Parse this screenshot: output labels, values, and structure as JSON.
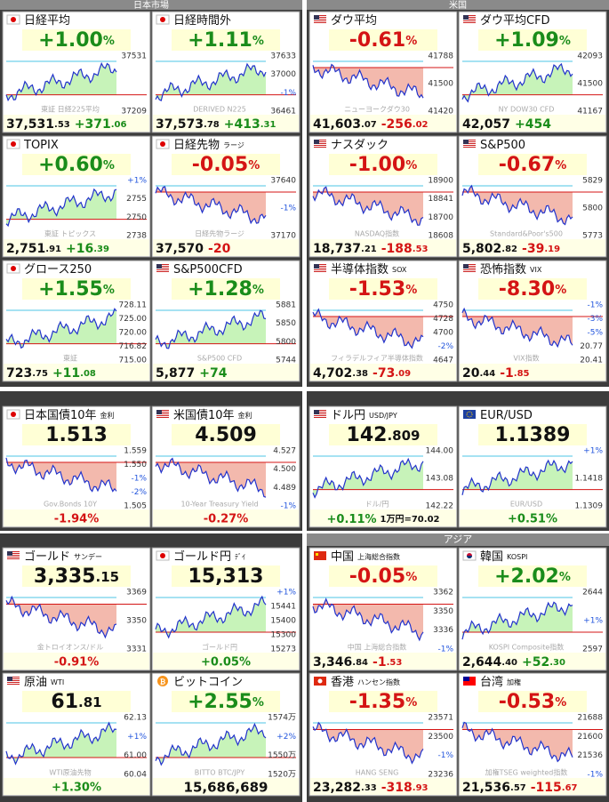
{
  "sections": [
    {
      "title": "日本市場"
    },
    {
      "title": "米国"
    },
    {
      "title": "アジア"
    }
  ],
  "panels": [
    {
      "name": "日経平均",
      "headline": [
        "+1.00",
        "%"
      ],
      "axis": [
        "37531",
        "37209"
      ],
      "watermark": "東証 日経225平均",
      "footer": [
        "37,531",
        ".53",
        "+371",
        ".06"
      ]
    },
    {
      "name": "日経時間外",
      "headline": [
        "+1.11",
        "%"
      ],
      "axis": [
        "37633",
        "37000",
        "-1%",
        "36461"
      ],
      "watermark": "DERIVED N225",
      "footer": [
        "37,573",
        ".78",
        "+413",
        ".31"
      ]
    },
    {
      "name": "TOPIX",
      "headline": [
        "+0.60",
        "%"
      ],
      "axis": [
        "+1%",
        "2755",
        "2750",
        "2738"
      ],
      "watermark": "東証 トピックス",
      "footer": [
        "2,751",
        ".91",
        "+16",
        ".39"
      ]
    },
    {
      "name": "日経先物",
      "sub": "ラージ",
      "headline": [
        "-0.05",
        "%"
      ],
      "axis": [
        "37640",
        "-1%",
        "37170"
      ],
      "watermark": "日経先物ラージ",
      "footer": [
        "37,570",
        "",
        "-20",
        ""
      ]
    },
    {
      "name": "グロース250",
      "headline": [
        "+1.55",
        "%"
      ],
      "axis": [
        "728.11",
        "725.00",
        "720.00",
        "716.82",
        "715.00"
      ],
      "watermark": "東証",
      "footer": [
        "723",
        ".75",
        "+11",
        ".08"
      ]
    },
    {
      "name": "S&P500CFD",
      "headline": [
        "+1.28",
        "%"
      ],
      "axis": [
        "5881",
        "5850",
        "5800",
        "5744"
      ],
      "watermark": "S&P500 CFD",
      "footer": [
        "5,877",
        "",
        "+74",
        ""
      ]
    },
    {
      "name": "ダウ平均",
      "headline": [
        "-0.61",
        "%"
      ],
      "axis": [
        "41788",
        "41500",
        "41420"
      ],
      "watermark": "ニューヨークダウ30",
      "footer": [
        "41,603",
        ".07",
        "-256",
        ".02"
      ]
    },
    {
      "name": "ダウ平均CFD",
      "headline": [
        "+1.09",
        "%"
      ],
      "axis": [
        "42093",
        "41500",
        "41167"
      ],
      "watermark": "NY DOW30 CFD",
      "footer": [
        "42,057",
        "",
        "+454",
        ""
      ]
    },
    {
      "name": "ナスダック",
      "headline": [
        "-1.00",
        "%"
      ],
      "axis": [
        "18900",
        "18841",
        "18700",
        "18608"
      ],
      "watermark": "NASDAQ指数",
      "footer": [
        "18,737",
        ".21",
        "-188",
        ".53"
      ]
    },
    {
      "name": "S&P500",
      "headline": [
        "-0.67",
        "%"
      ],
      "axis": [
        "5829",
        "5800",
        "5773"
      ],
      "watermark": "Standard&Poor's500",
      "footer": [
        "5,802",
        ".82",
        "-39",
        ".19"
      ]
    },
    {
      "name": "半導体指数",
      "sub": "SOX",
      "headline": [
        "-1.53",
        "%"
      ],
      "axis": [
        "4750",
        "4728",
        "4700",
        "-2%",
        "4647"
      ],
      "watermark": "フィラデルフィア半導体指数",
      "footer": [
        "4,702",
        ".38",
        "-73",
        ".09"
      ]
    },
    {
      "name": "恐怖指数",
      "sub": "VIX",
      "headline": [
        "-8.30",
        "%"
      ],
      "axis": [
        "-1%",
        "-3%",
        "-5%",
        "20.77",
        "20.41"
      ],
      "watermark": "VIX指数",
      "footer": [
        "20",
        ".44",
        "-1",
        ".85"
      ]
    },
    {
      "name": "日本国債10年",
      "sub": "金利",
      "headline": [
        "1.513",
        ""
      ],
      "axis": [
        "1.559",
        "1.550",
        "-1%",
        "-2%",
        "1.505"
      ],
      "watermark": "Gov.Bonds 10Y",
      "footer": [
        "-1.94%"
      ]
    },
    {
      "name": "米国債10年",
      "sub": "金利",
      "headline": [
        "4.509",
        ""
      ],
      "axis": [
        "4.527",
        "4.500",
        "4.489",
        "-1%"
      ],
      "watermark": "10-Year Treasury Yield",
      "footer": [
        "-0.27%"
      ]
    },
    {
      "name": "ドル円",
      "sub": "USD/JPY",
      "headline": [
        "142",
        ".809"
      ],
      "axis": [
        "144.00",
        "143.08",
        "142.22"
      ],
      "watermark": "ドル/円",
      "footer": [
        "+0.11%",
        "1万円=70.02"
      ]
    },
    {
      "name": "EUR/USD",
      "headline": [
        "1.1389",
        ""
      ],
      "axis": [
        "+1%",
        "1.1418",
        "1.1309"
      ],
      "watermark": "EUR/USD",
      "footer": [
        "+0.51%"
      ]
    },
    {
      "name": "ゴールド",
      "sub": "サンデー",
      "headline": [
        "3,335",
        ".15"
      ],
      "axis": [
        "3369",
        "3350",
        "3331"
      ],
      "watermark": "金トロイオンス/ドル",
      "footer": [
        "-0.91%"
      ]
    },
    {
      "name": "ゴールド円",
      "sub": "ﾃﾞｲ",
      "headline": [
        "15,313",
        ""
      ],
      "axis": [
        "+1%",
        "15441",
        "15400",
        "15300",
        "15273"
      ],
      "watermark": "ゴールド円",
      "footer": [
        "+0.05%"
      ]
    },
    {
      "name": "原油",
      "sub": "WTI",
      "headline": [
        "61",
        ".81"
      ],
      "axis": [
        "62.13",
        "+1%",
        "61.00",
        "60.04"
      ],
      "watermark": "WTI原油先物",
      "footer": [
        "+1.30%"
      ]
    },
    {
      "name": "ビットコイン",
      "headline": [
        "+2.55",
        "%"
      ],
      "axis": [
        "1574万",
        "+2%",
        "1550万",
        "1520万"
      ],
      "watermark": "BITTO BTC/JPY",
      "footer": [
        "15,686,689"
      ]
    },
    {
      "name": "中国",
      "sub": "上海総合指数",
      "headline": [
        "-0.05",
        "%"
      ],
      "axis": [
        "3362",
        "3350",
        "3336",
        "-1%"
      ],
      "watermark": "中国 上海総合指数",
      "footer": [
        "3,346",
        ".84",
        "-1",
        ".53"
      ]
    },
    {
      "name": "韓国",
      "sub": "KOSPI",
      "headline": [
        "+2.02",
        "%"
      ],
      "axis": [
        "2644",
        "+1%",
        "2597"
      ],
      "watermark": "KOSPI Composite指数",
      "footer": [
        "2,644",
        ".40",
        "+52",
        ".30"
      ]
    },
    {
      "name": "香港",
      "sub": "ハンセン指数",
      "headline": [
        "-1.35",
        "%"
      ],
      "axis": [
        "23571",
        "23500",
        "-1%",
        "23236"
      ],
      "watermark": "HANG SENG",
      "footer": [
        "23,282",
        ".33",
        "-318",
        ".93"
      ]
    },
    {
      "name": "台湾",
      "sub": "加権",
      "headline": [
        "-0.53",
        "%"
      ],
      "axis": [
        "21688",
        "21600",
        "21536",
        "-1%"
      ],
      "watermark": "加権TSEG weighted指数",
      "footer": [
        "21,536",
        ".57",
        "-115",
        ".67"
      ]
    }
  ]
}
